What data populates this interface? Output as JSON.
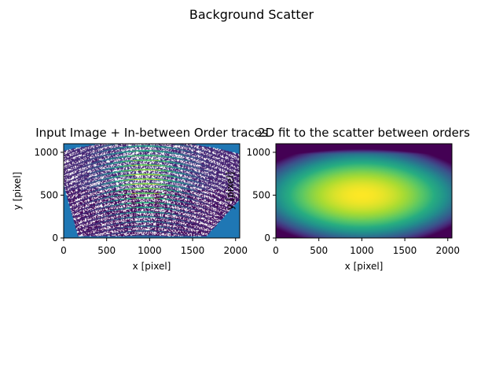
{
  "figure": {
    "suptitle": "Background Scatter"
  },
  "chart_data": [
    {
      "type": "heatmap",
      "title": "Input Image + In-between Order traces",
      "xlabel": "x [pixel]",
      "ylabel": "y [pixel]",
      "xlim": [
        0,
        2048
      ],
      "ylim": [
        0,
        1100
      ],
      "xticks": [
        0,
        500,
        1000,
        1500,
        2000
      ],
      "yticks": [
        0,
        500,
        1000
      ],
      "colormap": "viridis",
      "background_color": "#1f77b4",
      "trace_marker_color": "#ffffff",
      "description_values": {
        "peak_center": [
          950,
          700
        ],
        "order_spacing_px": 55
      }
    },
    {
      "type": "heatmap",
      "title": "2D fit to the scatter between orders",
      "xlabel": "x [pixel]",
      "ylabel": "y [pixel]",
      "xlim": [
        0,
        2048
      ],
      "ylim": [
        0,
        1100
      ],
      "xticks": [
        0,
        500,
        1000,
        1500,
        2000
      ],
      "yticks": [
        0,
        500,
        1000
      ],
      "colormap": "viridis",
      "peak_center": [
        1000,
        500
      ]
    }
  ]
}
